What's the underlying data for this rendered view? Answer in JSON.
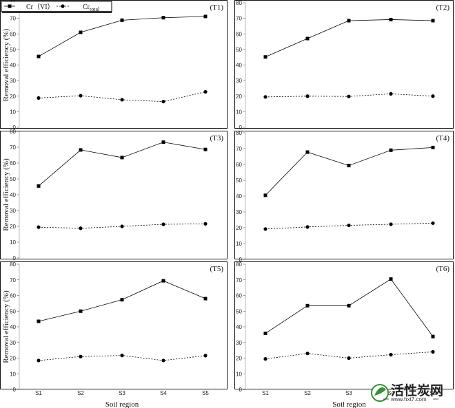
{
  "chart_data": [
    {
      "type": "line",
      "annotation": "(T1)",
      "ylabel": "Removal efficiency (%)",
      "ylim": [
        0,
        80
      ],
      "yticks": [
        0,
        10,
        20,
        30,
        40,
        50,
        60,
        70,
        80
      ],
      "categories": [
        "S1",
        "S2",
        "S3",
        "S4",
        "S5"
      ],
      "series": [
        {
          "name": "Cr（VI）",
          "style": "solid",
          "marker": "square",
          "values": [
            45.5,
            61,
            68.8,
            70.4,
            71.2
          ]
        },
        {
          "name": "Crtotal",
          "style": "dashed",
          "marker": "circle",
          "values": [
            18.8,
            20.3,
            17.7,
            16.5,
            22.8
          ]
        }
      ],
      "xtick_labels_shown": false,
      "legend": "top-left"
    },
    {
      "type": "line",
      "annotation": "(T2)",
      "ylabel": "",
      "ylim": [
        0,
        80
      ],
      "yticks": [
        0,
        10,
        20,
        30,
        40,
        50,
        60,
        70,
        80
      ],
      "categories": [
        "S1",
        "S2",
        "S3",
        "S4",
        "S5"
      ],
      "series": [
        {
          "style": "solid",
          "marker": "square",
          "values": [
            45.2,
            57,
            68.5,
            69.2,
            68.5
          ]
        },
        {
          "style": "dashed",
          "marker": "circle",
          "values": [
            19.5,
            20,
            19.8,
            21.5,
            20
          ]
        }
      ],
      "xtick_labels_shown": false
    },
    {
      "type": "line",
      "annotation": "(T3)",
      "ylabel": "Removal efficiency (%)",
      "ylim": [
        0,
        80
      ],
      "yticks": [
        0,
        10,
        20,
        30,
        40,
        50,
        60,
        70,
        80
      ],
      "categories": [
        "S1",
        "S2",
        "S3",
        "S4",
        "S5"
      ],
      "series": [
        {
          "style": "solid",
          "marker": "square",
          "values": [
            45.5,
            68.3,
            63.5,
            73.2,
            68.6
          ]
        },
        {
          "style": "dashed",
          "marker": "circle",
          "values": [
            19.5,
            18.8,
            20,
            21.3,
            21.6
          ]
        }
      ],
      "xtick_labels_shown": false
    },
    {
      "type": "line",
      "annotation": "(T4)",
      "ylabel": "",
      "ylim": [
        0,
        80
      ],
      "yticks": [
        0,
        10,
        20,
        30,
        40,
        50,
        60,
        70,
        80
      ],
      "categories": [
        "S1",
        "S2",
        "S3",
        "S4",
        "S5"
      ],
      "series": [
        {
          "style": "solid",
          "marker": "square",
          "values": [
            40.5,
            67.8,
            59.3,
            69,
            70.7
          ]
        },
        {
          "style": "dashed",
          "marker": "circle",
          "values": [
            19.2,
            20.5,
            21.5,
            22.2,
            22.9
          ]
        }
      ],
      "xtick_labels_shown": false
    },
    {
      "type": "line",
      "annotation": "(T5)",
      "ylabel": "Removal  efficiency (%)",
      "xlabel": "Soil region",
      "ylim": [
        0,
        80
      ],
      "yticks": [
        0,
        10,
        20,
        30,
        40,
        50,
        60,
        70,
        80
      ],
      "categories": [
        "S1",
        "S2",
        "S3",
        "S4",
        "S5"
      ],
      "series": [
        {
          "style": "solid",
          "marker": "square",
          "values": [
            43.5,
            50,
            57.3,
            69.4,
            58
          ]
        },
        {
          "style": "dashed",
          "marker": "circle",
          "values": [
            18.5,
            21,
            21.7,
            18.5,
            21.6
          ]
        }
      ],
      "xtick_labels_shown": true
    },
    {
      "type": "line",
      "annotation": "(T6)",
      "ylabel": "",
      "xlabel": "Soil region",
      "ylim": [
        0,
        80
      ],
      "yticks": [
        0,
        10,
        20,
        30,
        40,
        50,
        60,
        70,
        80
      ],
      "categories": [
        "S1",
        "S2",
        "S3",
        "S4",
        "S5"
      ],
      "series": [
        {
          "style": "solid",
          "marker": "square",
          "values": [
            35.8,
            53.5,
            53.5,
            70.5,
            33.8
          ]
        },
        {
          "style": "dashed",
          "marker": "circle",
          "values": [
            19.5,
            23,
            20,
            22.2,
            24
          ]
        }
      ],
      "xtick_labels_shown": true
    }
  ],
  "legend": {
    "series1_label": "Cr（VI）",
    "series2_base": "Cr",
    "series2_sub": "total"
  },
  "watermark": {
    "text": "活性炭网",
    "url": "www.hxt7.com"
  }
}
